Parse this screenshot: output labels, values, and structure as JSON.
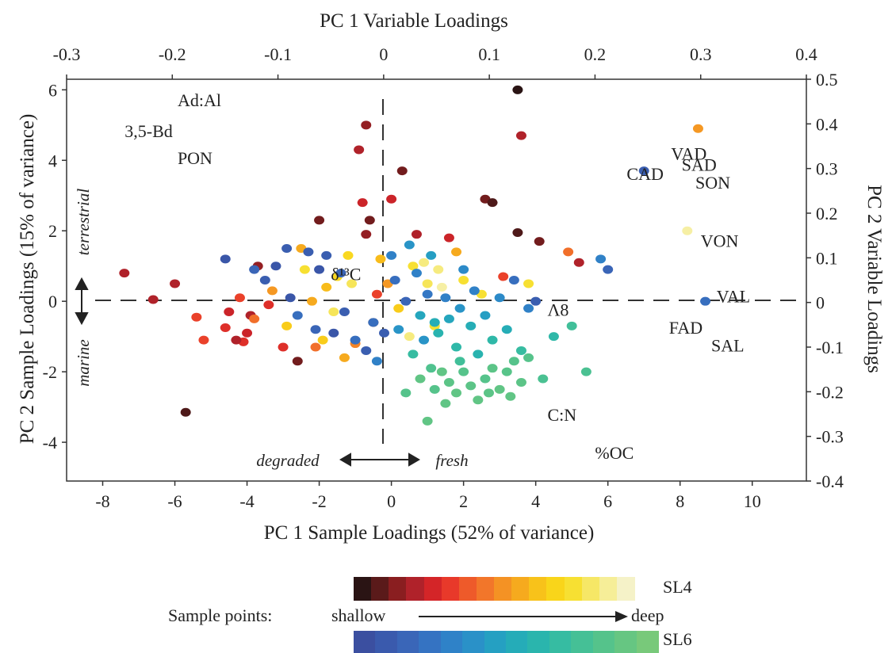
{
  "chart_data": {
    "type": "scatter",
    "title": "",
    "axes": {
      "x_bottom": {
        "label": "PC 1 Sample Loadings (52% of variance)",
        "range": [
          -9,
          11.5
        ],
        "ticks": [
          -8,
          -6,
          -4,
          -2,
          0,
          2,
          4,
          6,
          8,
          10
        ]
      },
      "y_left": {
        "label": "PC 2 Sample Loadings (15% of variance)",
        "range": [
          -5.1,
          6.3
        ],
        "ticks": [
          -4,
          -2,
          0,
          2,
          4,
          6
        ]
      },
      "x_top": {
        "label": "PC 1 Variable Loadings",
        "range": [
          -0.3,
          0.4
        ],
        "ticks": [
          "-0.3",
          "-0.2",
          "-0.1",
          "0",
          "0.1",
          "0.2",
          "0.3",
          "0.4"
        ]
      },
      "y_right": {
        "label": "PC 2 Variable Loadings",
        "range": [
          -0.4,
          0.5
        ],
        "ticks": [
          "-0.4",
          "-0.3",
          "-0.2",
          "-0.1",
          "0",
          "0.1",
          "0.2",
          "0.3",
          "0.4",
          "0.5"
        ]
      }
    },
    "variable_labels": [
      {
        "text": "Ad:Al",
        "x": -0.195,
        "y": 0.44
      },
      {
        "text": "3,5-Bd",
        "x": -0.245,
        "y": 0.37
      },
      {
        "text": "PON",
        "x": -0.195,
        "y": 0.31
      },
      {
        "text": "VAD",
        "x": 0.272,
        "y": 0.32
      },
      {
        "text": "SAD",
        "x": 0.282,
        "y": 0.295
      },
      {
        "text": "CAD",
        "x": 0.23,
        "y": 0.275
      },
      {
        "text": "SON",
        "x": 0.295,
        "y": 0.255
      },
      {
        "text": "VON",
        "x": 0.3,
        "y": 0.125
      },
      {
        "text": "VAL",
        "x": 0.315,
        "y": 0.0
      },
      {
        "text": "FAD",
        "x": 0.27,
        "y": -0.07
      },
      {
        "text": "SAL",
        "x": 0.31,
        "y": -0.11
      },
      {
        "text": "δ¹³C",
        "x": -0.05,
        "y": 0.05
      },
      {
        "text": "Λ8",
        "x": 0.155,
        "y": -0.03
      },
      {
        "text": "C:N",
        "x": 0.155,
        "y": -0.265
      },
      {
        "text": "%OC",
        "x": 0.2,
        "y": -0.35
      }
    ],
    "annotations": {
      "terrestrial": "terrestrial",
      "marine": "marine",
      "degraded": "degraded",
      "fresh": "fresh"
    },
    "series": [
      {
        "name": "SL4",
        "points": [
          [
            -7.4,
            0.8,
            0.2
          ],
          [
            -6.6,
            0.05,
            0.2
          ],
          [
            -6.0,
            0.5,
            0.2
          ],
          [
            -5.7,
            -3.15,
            0.05
          ],
          [
            -5.4,
            -0.45,
            0.35
          ],
          [
            -5.2,
            -1.1,
            0.35
          ],
          [
            -4.6,
            -0.75,
            0.3
          ],
          [
            -4.5,
            -0.3,
            0.25
          ],
          [
            -4.2,
            0.1,
            0.35
          ],
          [
            -4.0,
            -0.9,
            0.25
          ],
          [
            -4.1,
            -1.15,
            0.3
          ],
          [
            -3.9,
            -0.4,
            0.2
          ],
          [
            -4.3,
            -1.1,
            0.2
          ],
          [
            -3.8,
            -0.5,
            0.45
          ],
          [
            -3.7,
            1.0,
            0.15
          ],
          [
            -3.3,
            0.3,
            0.55
          ],
          [
            -3.0,
            -1.3,
            0.3
          ],
          [
            -2.6,
            -1.7,
            0.1
          ],
          [
            -2.9,
            -0.7,
            0.7
          ],
          [
            -2.5,
            1.5,
            0.6
          ],
          [
            -2.4,
            0.9,
            0.8
          ],
          [
            -2.1,
            -1.3,
            0.45
          ],
          [
            -2.0,
            2.3,
            0.1
          ],
          [
            -1.9,
            -1.1,
            0.7
          ],
          [
            -1.8,
            0.4,
            0.65
          ],
          [
            -1.6,
            -0.3,
            0.85
          ],
          [
            -1.5,
            0.7,
            0.75
          ],
          [
            -1.3,
            -1.6,
            0.6
          ],
          [
            -1.2,
            1.3,
            0.75
          ],
          [
            -1.0,
            -1.2,
            0.5
          ],
          [
            -1.1,
            0.5,
            0.85
          ],
          [
            -0.9,
            4.3,
            0.2
          ],
          [
            -0.7,
            5.0,
            0.15
          ],
          [
            -0.8,
            2.8,
            0.25
          ],
          [
            -0.6,
            2.3,
            0.1
          ],
          [
            -0.7,
            1.9,
            0.15
          ],
          [
            -0.5,
            -0.6,
            0.05
          ],
          [
            -0.4,
            0.2,
            0.35
          ],
          [
            -0.3,
            1.2,
            0.65
          ],
          [
            -0.1,
            0.5,
            0.55
          ],
          [
            0.0,
            2.9,
            0.25
          ],
          [
            0.3,
            3.7,
            0.1
          ],
          [
            0.2,
            -0.2,
            0.7
          ],
          [
            0.6,
            1.0,
            0.8
          ],
          [
            0.7,
            1.9,
            0.2
          ],
          [
            0.9,
            1.1,
            0.9
          ],
          [
            1.0,
            0.5,
            0.85
          ],
          [
            1.3,
            0.9,
            0.9
          ],
          [
            1.4,
            0.4,
            0.95
          ],
          [
            1.6,
            1.8,
            0.25
          ],
          [
            1.8,
            1.4,
            0.6
          ],
          [
            2.0,
            0.6,
            0.8
          ],
          [
            2.5,
            0.2,
            0.8
          ],
          [
            2.6,
            2.9,
            0.1
          ],
          [
            2.8,
            2.8,
            0.05
          ],
          [
            3.1,
            0.7,
            0.35
          ],
          [
            3.5,
            6.0,
            0.0
          ],
          [
            3.6,
            4.7,
            0.2
          ],
          [
            3.5,
            1.95,
            0.05
          ],
          [
            3.8,
            0.5,
            0.8
          ],
          [
            4.1,
            1.7,
            0.1
          ],
          [
            4.9,
            1.4,
            0.45
          ],
          [
            5.2,
            1.1,
            0.2
          ],
          [
            8.5,
            4.9,
            0.55
          ],
          [
            8.2,
            2.0,
            0.95
          ],
          [
            0.5,
            -1.0,
            0.9
          ],
          [
            1.2,
            -0.7,
            0.8
          ],
          [
            -3.4,
            -0.1,
            0.3
          ],
          [
            -2.2,
            0.0,
            0.6
          ]
        ]
      },
      {
        "name": "SL6",
        "points": [
          [
            -4.6,
            1.2,
            0.05
          ],
          [
            -3.8,
            0.9,
            0.15
          ],
          [
            -3.5,
            0.6,
            0.1
          ],
          [
            -3.2,
            1.0,
            0.05
          ],
          [
            -2.9,
            1.5,
            0.1
          ],
          [
            -2.8,
            0.1,
            0.05
          ],
          [
            -2.6,
            -0.4,
            0.2
          ],
          [
            -2.3,
            1.4,
            0.1
          ],
          [
            -2.0,
            0.9,
            0.05
          ],
          [
            -2.1,
            -0.8,
            0.15
          ],
          [
            -1.8,
            1.3,
            0.1
          ],
          [
            -1.6,
            -0.9,
            0.05
          ],
          [
            -1.4,
            0.8,
            0.15
          ],
          [
            -1.3,
            -0.3,
            0.1
          ],
          [
            -1.0,
            -1.1,
            0.2
          ],
          [
            -0.7,
            -1.4,
            0.1
          ],
          [
            -0.5,
            -0.6,
            0.2
          ],
          [
            -0.4,
            -1.7,
            0.3
          ],
          [
            -0.2,
            -0.9,
            0.1
          ],
          [
            0.0,
            1.3,
            0.3
          ],
          [
            0.1,
            0.6,
            0.2
          ],
          [
            0.2,
            -0.8,
            0.4
          ],
          [
            0.4,
            0.0,
            0.15
          ],
          [
            0.5,
            1.6,
            0.4
          ],
          [
            0.7,
            0.8,
            0.3
          ],
          [
            0.8,
            -0.4,
            0.5
          ],
          [
            0.9,
            -1.1,
            0.4
          ],
          [
            1.0,
            0.2,
            0.25
          ],
          [
            1.1,
            1.3,
            0.45
          ],
          [
            1.2,
            -0.6,
            0.55
          ],
          [
            1.3,
            -0.9,
            0.6
          ],
          [
            1.5,
            0.1,
            0.3
          ],
          [
            1.6,
            -0.5,
            0.5
          ],
          [
            1.8,
            -1.3,
            0.65
          ],
          [
            1.9,
            -0.2,
            0.4
          ],
          [
            2.0,
            0.9,
            0.35
          ],
          [
            2.2,
            -0.7,
            0.55
          ],
          [
            2.3,
            0.3,
            0.3
          ],
          [
            2.4,
            -1.5,
            0.6
          ],
          [
            2.6,
            -0.4,
            0.45
          ],
          [
            2.8,
            -1.1,
            0.65
          ],
          [
            3.0,
            0.1,
            0.35
          ],
          [
            3.2,
            -0.8,
            0.55
          ],
          [
            3.4,
            0.6,
            0.2
          ],
          [
            3.6,
            -1.4,
            0.7
          ],
          [
            3.8,
            -0.2,
            0.3
          ],
          [
            4.0,
            0.0,
            0.1
          ],
          [
            4.2,
            -2.2,
            0.8
          ],
          [
            4.5,
            -1.0,
            0.65
          ],
          [
            5.0,
            -0.7,
            0.75
          ],
          [
            5.4,
            -2.0,
            0.8
          ],
          [
            5.8,
            1.2,
            0.3
          ],
          [
            6.0,
            0.9,
            0.15
          ],
          [
            7.0,
            3.7,
            0.1
          ],
          [
            8.7,
            0.0,
            0.2
          ],
          [
            0.4,
            -2.6,
            0.85
          ],
          [
            0.8,
            -2.2,
            0.9
          ],
          [
            1.0,
            -3.4,
            0.9
          ],
          [
            1.2,
            -2.5,
            0.85
          ],
          [
            1.4,
            -2.0,
            0.9
          ],
          [
            1.6,
            -2.3,
            0.88
          ],
          [
            1.8,
            -2.6,
            0.9
          ],
          [
            2.0,
            -2.0,
            0.85
          ],
          [
            2.2,
            -2.4,
            0.88
          ],
          [
            2.4,
            -2.8,
            0.9
          ],
          [
            2.6,
            -2.2,
            0.85
          ],
          [
            2.8,
            -1.9,
            0.88
          ],
          [
            3.0,
            -2.5,
            0.9
          ],
          [
            3.2,
            -2.0,
            0.86
          ],
          [
            3.4,
            -1.7,
            0.85
          ],
          [
            3.6,
            -2.3,
            0.88
          ],
          [
            3.8,
            -1.6,
            0.85
          ],
          [
            1.1,
            -1.9,
            0.82
          ],
          [
            1.5,
            -2.9,
            0.9
          ],
          [
            2.7,
            -2.6,
            0.88
          ],
          [
            3.3,
            -2.7,
            0.9
          ],
          [
            0.6,
            -1.5,
            0.7
          ],
          [
            1.9,
            -1.7,
            0.75
          ]
        ]
      }
    ],
    "colorbar": {
      "prefix": "Sample points:",
      "shallow": "shallow",
      "deep": "deep",
      "sl4_label": "SL4",
      "sl6_label": "SL6",
      "sl4_colors": [
        "#2a1414",
        "#5a1a1a",
        "#8a1e20",
        "#b0222a",
        "#d42528",
        "#e8392a",
        "#ee5a2a",
        "#f2762a",
        "#f49224",
        "#f6aa1e",
        "#f8c21a",
        "#f9d51a",
        "#f7e032",
        "#f6e766",
        "#f6ee98",
        "#f5f2c8"
      ],
      "sl6_colors": [
        "#3b4fa0",
        "#3a5aad",
        "#3a66b8",
        "#3573c2",
        "#2f82c8",
        "#2a91c8",
        "#25a0c2",
        "#25acb8",
        "#2ab5ad",
        "#36bca2",
        "#45c096",
        "#55c38b",
        "#66c682",
        "#78c97a"
      ]
    }
  }
}
